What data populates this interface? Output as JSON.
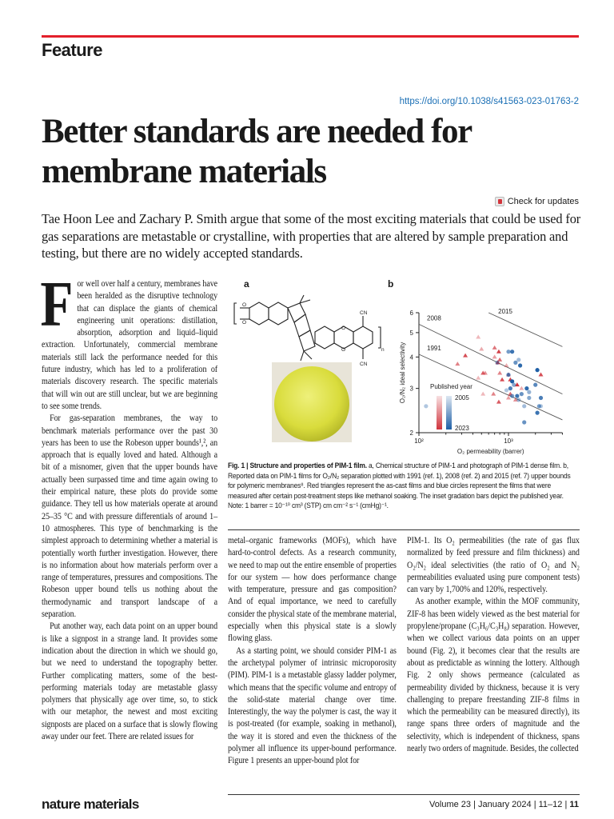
{
  "header": {
    "section": "Feature",
    "doi": "https://doi.org/10.1038/s41563-023-01763-2"
  },
  "article": {
    "title": "Better standards are needed for membrane materials",
    "check_updates": "Check for updates",
    "standfirst": "Tae Hoon Lee and Zachary P. Smith argue that some of the most exciting materials that could be used for gas separations are metastable or crystalline, with properties that are altered by sample preparation and testing, but there are no widely accepted standards."
  },
  "body": {
    "drop_cap": "F",
    "left": [
      "or well over half a century, membranes have been heralded as the disruptive technology that can displace the giants of chemical engineering unit operations: distillation, absorption, adsorption and liquid–liquid extraction. Unfortunately, commercial membrane materials still lack the performance needed for this future industry, which has led to a proliferation of materials discovery research. The specific materials that will win out are still unclear, but we are beginning to see some trends.",
      "For gas-separation membranes, the way to benchmark materials performance over the past 30 years has been to use the Robeson upper bounds¹,², an approach that is equally loved and hated. Although a bit of a misnomer, given that the upper bounds have actually been surpassed time and time again owing to their empirical nature, these plots do provide some guidance. They tell us how materials operate at around 25–35 °C and with pressure differentials of around 1–10 atmospheres. This type of benchmarking is the simplest approach to determining whether a material is potentially worth further investigation. However, there is no information about how materials perform over a range of temperatures, pressures and compositions. The Robeson upper bound tells us nothing about the thermodynamic and transport landscape of a separation.",
      "Put another way, each data point on an upper bound is like a signpost in a strange land. It provides some indication about the direction in which we should go, but we need to understand the topography better. Further complicating matters, some of the best-performing materials today are metastable glassy polymers that physically age over time, so, to stick with our metaphor, the newest and most exciting signposts are placed on a surface that is slowly flowing away under our feet. There are related issues for"
    ],
    "middle": [
      "metal–organic frameworks (MOFs), which have hard-to-control defects. As a research community, we need to map out the entire ensemble of properties for our system — how does performance change with temperature, pressure and gas composition? And of equal importance, we need to carefully consider the physical state of the membrane material, especially when this physical state is a slowly flowing glass.",
      "As a starting point, we should consider PIM-1 as the archetypal polymer of intrinsic microporosity (PIM). PIM-1 is a metastable glassy ladder polymer, which means that the specific volume and entropy of the solid-state material change over time. Interestingly, the way the polymer is cast, the way it is post-treated (for example, soaking in methanol), the way it is stored and even the thickness of the polymer all influence its upper-bound performance. Figure 1 presents an upper-bound plot for"
    ],
    "right": [
      "PIM-1. Its O₂ permeabilities (the rate of gas flux normalized by feed pressure and film thickness) and O₂/N₂ ideal selectivities (the ratio of O₂ and N₂ permeabilities evaluated using pure component tests) can vary by 1,700% and 120%, respectively.",
      "As another example, within the MOF community, ZIF-8 has been widely viewed as the best material for propylene/propane (C₃H₆/C₃H₈) separation. However, when we collect various data points on an upper bound (Fig. 2), it becomes clear that the results are about as predictable as winning the lottery. Although Fig. 2 only shows permeance (calculated as permeability divided by thickness, because it is very challenging to prepare freestanding ZIF-8 films in which the permeability can be measured directly), its range spans three orders of magnitude and the selectivity, which is independent of thickness, spans nearly two orders of magnitude. Besides, the collected"
    ]
  },
  "figure": {
    "label_a": "a",
    "label_b": "b",
    "caption_lead": "Fig. 1 | Structure and properties of PIM-1 film.",
    "caption_text": " a, Chemical structure of PIM-1 and photograph of PIM-1 dense film. b, Reported data on PIM-1 films for O₂/N₂ separation plotted with 1991 (ref. 1), 2008 (ref. 2) and 2015 (ref. 7) upper bounds for polymeric membranes⁸. Red triangles represent the as-cast films and blue circles represent the films that were measured after certain post-treatment steps like methanol soaking. The inset gradation bars depict the published year. Note: 1 barrer = 10⁻¹⁰ cm³ (STP) cm cm⁻² s⁻¹ (cmHg)⁻¹.",
    "structure_labels": {
      "cn": "CN",
      "o": "O",
      "n": "n"
    }
  },
  "chart_data": {
    "type": "scatter",
    "xlabel": "O₂ permeability (barrer)",
    "ylabel": "O₂/N₂ ideal selectivity",
    "xscale": "log",
    "yscale": "log",
    "xlim": [
      100,
      4000
    ],
    "ylim": [
      2,
      6
    ],
    "xticks": [
      {
        "v": 100,
        "label": "10²"
      },
      {
        "v": 1000,
        "label": "10³"
      }
    ],
    "yticks": [
      2,
      3,
      4,
      5,
      6
    ],
    "legend": {
      "title": "Published year",
      "start": "2005",
      "end": "2023",
      "colors": {
        "as_cast": "#d0343d",
        "post_treated": "#1f5fa6"
      }
    },
    "upper_bounds": [
      {
        "name": "1991",
        "points": [
          [
            100,
            4.1
          ],
          [
            4000,
            2.25
          ]
        ]
      },
      {
        "name": "2008",
        "points": [
          [
            100,
            5.4
          ],
          [
            4000,
            2.85
          ]
        ]
      },
      {
        "name": "2015",
        "points": [
          [
            600,
            6.0
          ],
          [
            4000,
            4.4
          ]
        ]
      }
    ],
    "series": [
      {
        "marker": "triangle",
        "color": "#d0343d",
        "points": [
          [
            460,
            4.8
          ],
          [
            270,
            3.75
          ],
          [
            330,
            4.05
          ],
          [
            500,
            4.3
          ],
          [
            700,
            4.35
          ],
          [
            780,
            4.2
          ],
          [
            700,
            4.0
          ],
          [
            800,
            3.9
          ],
          [
            760,
            3.8
          ],
          [
            550,
            3.45
          ],
          [
            520,
            3.45
          ],
          [
            460,
            3.3
          ],
          [
            800,
            3.45
          ],
          [
            850,
            3.25
          ],
          [
            950,
            3.7
          ],
          [
            1000,
            3.4
          ],
          [
            1050,
            3.25
          ],
          [
            1000,
            2.75
          ],
          [
            1050,
            2.85
          ],
          [
            1250,
            3.1
          ],
          [
            1200,
            2.7
          ],
          [
            780,
            2.65
          ],
          [
            520,
            2.85
          ],
          [
            680,
            2.85
          ],
          [
            2300,
            3.4
          ],
          [
            1400,
            3.0
          ]
        ]
      },
      {
        "marker": "circle",
        "color": "#1f5fa6",
        "points": [
          [
            120,
            2.55
          ],
          [
            1000,
            4.2
          ],
          [
            1100,
            4.2
          ],
          [
            1300,
            3.9
          ],
          [
            1200,
            3.8
          ],
          [
            1350,
            3.7
          ],
          [
            750,
            3.8
          ],
          [
            1000,
            3.4
          ],
          [
            1100,
            3.2
          ],
          [
            1150,
            3.1
          ],
          [
            1050,
            3.0
          ],
          [
            950,
            2.95
          ],
          [
            1100,
            2.8
          ],
          [
            1250,
            2.8
          ],
          [
            1300,
            2.7
          ],
          [
            1400,
            2.85
          ],
          [
            1600,
            3.0
          ],
          [
            1700,
            2.9
          ],
          [
            2000,
            3.1
          ],
          [
            2100,
            3.55
          ],
          [
            1700,
            2.75
          ],
          [
            2300,
            2.75
          ],
          [
            2300,
            2.55
          ],
          [
            2200,
            2.55
          ],
          [
            2100,
            2.4
          ],
          [
            1500,
            2.55
          ],
          [
            1500,
            2.2
          ]
        ]
      }
    ]
  },
  "footer": {
    "journal": "nature materials",
    "volume": "Volume 23 | January 2024 | 11–12 | ",
    "page": "11"
  }
}
